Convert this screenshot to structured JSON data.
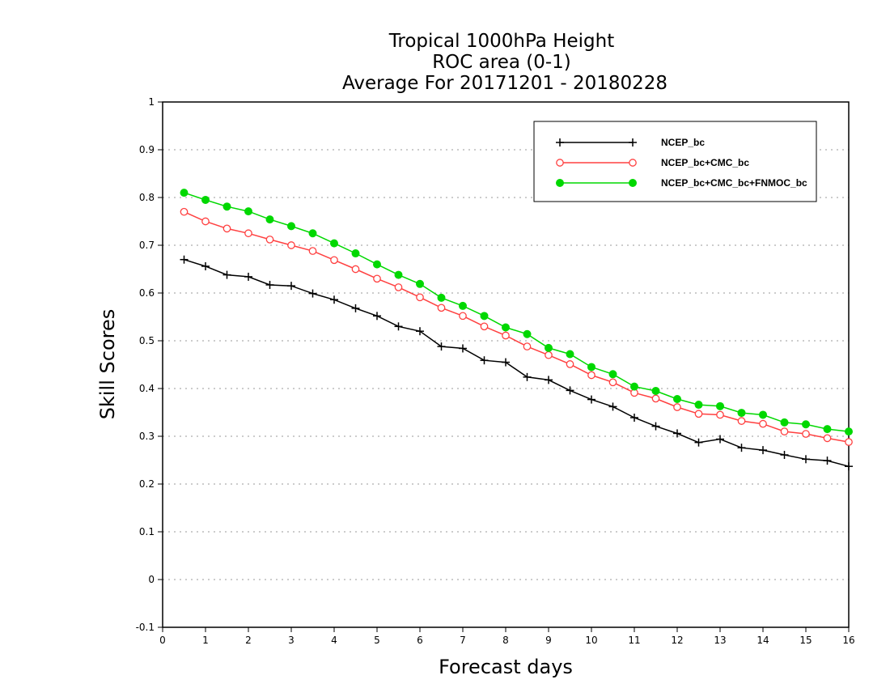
{
  "chart_data": {
    "type": "line",
    "title": [
      "Tropical 1000hPa Height",
      "ROC area (0-1)",
      "Average For 20171201 - 20180228"
    ],
    "xlabel": "Forecast days",
    "ylabel": "Skill Scores",
    "xlim": [
      0,
      16
    ],
    "ylim": [
      -0.1,
      1
    ],
    "x_ticks": [
      0,
      1,
      2,
      3,
      4,
      5,
      6,
      7,
      8,
      9,
      10,
      11,
      12,
      13,
      14,
      15,
      16
    ],
    "y_ticks": [
      -0.1,
      0,
      0.1,
      0.2,
      0.3,
      0.4,
      0.5,
      0.6,
      0.7,
      0.8,
      0.9,
      1
    ],
    "y_tick_labels": [
      "-0.1",
      "0",
      "0.1",
      "0.2",
      "0.3",
      "0.4",
      "0.5",
      "0.6",
      "0.7",
      "0.8",
      "0.9",
      "1"
    ],
    "grid": "horizontal dotted",
    "legend_position": "top-right",
    "x": [
      0.5,
      1,
      1.5,
      2,
      2.5,
      3,
      3.5,
      4,
      4.5,
      5,
      5.5,
      6,
      6.5,
      7,
      7.5,
      8,
      8.5,
      9,
      9.5,
      10,
      10.5,
      11,
      11.5,
      12,
      12.5,
      13,
      13.5,
      14,
      14.5,
      15,
      15.5,
      16
    ],
    "series": [
      {
        "name": "NCEP_bc",
        "color": "#000000",
        "marker": "plus",
        "values": [
          0.67,
          0.656,
          0.638,
          0.634,
          0.617,
          0.615,
          0.599,
          0.586,
          0.568,
          0.552,
          0.53,
          0.52,
          0.488,
          0.484,
          0.459,
          0.455,
          0.424,
          0.418,
          0.396,
          0.377,
          0.362,
          0.339,
          0.321,
          0.306,
          0.287,
          0.294,
          0.276,
          0.271,
          0.261,
          0.252,
          0.249,
          0.237
        ]
      },
      {
        "name": "NCEP_bc+CMC_bc",
        "color": "#ff4040",
        "marker": "open-circle",
        "values": [
          0.77,
          0.75,
          0.735,
          0.725,
          0.712,
          0.7,
          0.688,
          0.669,
          0.65,
          0.63,
          0.612,
          0.591,
          0.569,
          0.552,
          0.53,
          0.511,
          0.488,
          0.47,
          0.451,
          0.428,
          0.413,
          0.391,
          0.379,
          0.361,
          0.347,
          0.345,
          0.332,
          0.326,
          0.31,
          0.305,
          0.296,
          0.288
        ]
      },
      {
        "name": "NCEP_bc+CMC_bc+FNMOC_bc",
        "color": "#00d800",
        "marker": "filled-circle",
        "values": [
          0.81,
          0.795,
          0.781,
          0.771,
          0.754,
          0.74,
          0.725,
          0.704,
          0.683,
          0.66,
          0.638,
          0.619,
          0.59,
          0.573,
          0.552,
          0.528,
          0.514,
          0.485,
          0.472,
          0.445,
          0.43,
          0.404,
          0.395,
          0.378,
          0.366,
          0.363,
          0.349,
          0.345,
          0.329,
          0.325,
          0.315,
          0.31
        ]
      }
    ]
  }
}
